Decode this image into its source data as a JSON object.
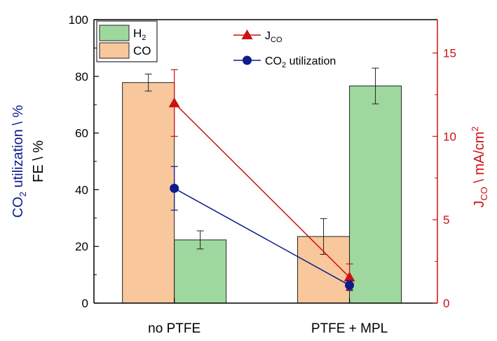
{
  "chart_data": {
    "type": "bar",
    "categories": [
      "no PTFE",
      "PTFE + MPL"
    ],
    "bar_series": [
      {
        "name": "H",
        "sub": "2",
        "color": "#9fd89e",
        "values": [
          22.3,
          76.6
        ],
        "errors": [
          3.2,
          6.3
        ]
      },
      {
        "name": "CO",
        "sub": "",
        "color": "#f8c79c",
        "values": [
          77.8,
          23.5
        ],
        "errors": [
          3.0,
          6.3
        ]
      }
    ],
    "line_series": [
      {
        "name": "J",
        "sub": "CO",
        "suffix": "",
        "axis": "right",
        "color": "#cc1111",
        "marker": "triangle",
        "values": [
          12.0,
          1.55
        ],
        "errors": [
          2.0,
          0.8
        ]
      },
      {
        "name": "CO",
        "sub": "2",
        "suffix": " utilization",
        "axis": "left",
        "color": "#0d1b8c",
        "marker": "circle",
        "values": [
          40.5,
          6.3
        ],
        "errors": [
          7.7,
          1.6
        ]
      }
    ],
    "left_axis": {
      "ylim": [
        0,
        100
      ],
      "ticks": [
        0,
        20,
        40,
        60,
        80,
        100
      ],
      "label1": {
        "pre": "CO",
        "sub": "2",
        "post": " utilization \\ %"
      },
      "label2": "FE \\ %"
    },
    "right_axis": {
      "ylim": [
        0,
        17
      ],
      "ticks": [
        0,
        5,
        10,
        15
      ],
      "label": {
        "pre": "J",
        "sub": "CO",
        "post": " \\ mA/cm",
        "sup": "2"
      },
      "color": "#cc1111"
    },
    "legend_placement": "top-left"
  }
}
